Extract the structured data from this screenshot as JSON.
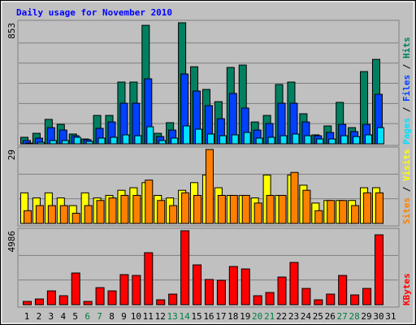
{
  "title": "Daily usage for November 2010",
  "chart_data": [
    {
      "type": "bar",
      "ylim": [
        0,
        853
      ],
      "yticks": [
        853
      ],
      "legend_separator": " / ",
      "series": [
        {
          "name": "Hits",
          "color": "#008060",
          "values": [
            46,
            74,
            172,
            137,
            69,
            34,
            200,
            200,
            435,
            435,
            835,
            74,
            149,
            853,
            543,
            383,
            297,
            538,
            555,
            154,
            200,
            418,
            435,
            212,
            63,
            126,
            292,
            114,
            509,
            595,
            0
          ]
        },
        {
          "name": "Files",
          "color": "#0040ff",
          "values": [
            23,
            40,
            114,
            97,
            57,
            29,
            109,
            154,
            286,
            286,
            458,
            51,
            97,
            492,
            372,
            269,
            177,
            355,
            252,
            97,
            143,
            286,
            286,
            154,
            57,
            80,
            137,
            86,
            137,
            349,
            0
          ]
        },
        {
          "name": "Pages",
          "color": "#00e0ff",
          "values": [
            5,
            11,
            23,
            23,
            46,
            17,
            40,
            46,
            63,
            57,
            120,
            23,
            40,
            126,
            103,
            69,
            57,
            63,
            80,
            40,
            46,
            57,
            69,
            57,
            34,
            34,
            57,
            51,
            63,
            114,
            0
          ]
        }
      ]
    },
    {
      "type": "bar",
      "ylim": [
        0,
        29
      ],
      "yticks": [
        29
      ],
      "legend_separator": " / ",
      "series": [
        {
          "name": "Visits",
          "color": "#ffff00",
          "values": [
            12,
            10,
            12,
            10,
            7,
            12,
            10,
            11,
            13,
            14,
            16,
            11,
            10,
            13,
            16,
            19,
            14,
            11,
            11,
            10,
            19,
            11,
            19,
            15,
            8,
            9,
            9,
            9,
            14,
            14,
            0
          ]
        },
        {
          "name": "Sites",
          "color": "#ff8000",
          "values": [
            5,
            7,
            7,
            7,
            4,
            7,
            9,
            10,
            11,
            11,
            17,
            9,
            7,
            12,
            11,
            29,
            11,
            11,
            11,
            8,
            11,
            11,
            20,
            13,
            5,
            9,
            9,
            7,
            12,
            12,
            0
          ]
        }
      ]
    },
    {
      "type": "bar",
      "ylim": [
        0,
        4986
      ],
      "yticks": [
        4986
      ],
      "categories": [
        "1",
        "2",
        "3",
        "4",
        "5",
        "6",
        "7",
        "8",
        "9",
        "10",
        "11",
        "12",
        "13",
        "14",
        "15",
        "16",
        "17",
        "18",
        "19",
        "20",
        "21",
        "22",
        "23",
        "24",
        "25",
        "26",
        "27",
        "28",
        "29",
        "30",
        "31"
      ],
      "label_color": "#000000",
      "weekend_label_color": "#008040",
      "weekend": [
        5,
        6,
        12,
        13,
        19,
        20,
        26,
        27
      ],
      "series": [
        {
          "name": "KBytes",
          "color": "#ff0000",
          "values": [
            219,
            383,
            931,
            603,
            2137,
            219,
            1150,
            931,
            2027,
            1973,
            3507,
            329,
            712,
            4986,
            2685,
            1699,
            1644,
            2576,
            2411,
            603,
            822,
            1863,
            2850,
            1096,
            329,
            712,
            1973,
            658,
            1096,
            4712,
            0
          ]
        }
      ]
    }
  ]
}
